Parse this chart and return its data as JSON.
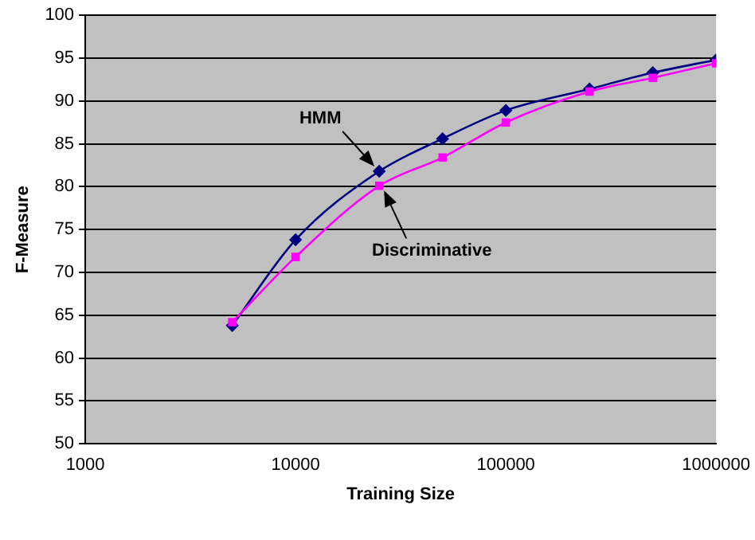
{
  "chart_data": {
    "type": "line",
    "xlabel": "Training Size",
    "ylabel": "F-Measure",
    "x": [
      5000,
      10000,
      25000,
      50000,
      100000,
      250000,
      500000,
      1000000
    ],
    "series": [
      {
        "name": "HMM",
        "color": "#000080",
        "marker": "diamond",
        "values": [
          63.8,
          73.8,
          81.8,
          85.6,
          88.9,
          91.4,
          93.3,
          94.8
        ]
      },
      {
        "name": "Discriminative",
        "color": "#ff00ff",
        "marker": "square",
        "values": [
          64.2,
          71.8,
          80.1,
          83.4,
          87.5,
          91.1,
          92.7,
          94.4
        ]
      }
    ],
    "log": "x",
    "xlim": [
      1000,
      1000000
    ],
    "xticks": [
      1000,
      10000,
      100000,
      1000000
    ],
    "ylim": [
      50,
      100
    ],
    "yticks": [
      50,
      55,
      60,
      65,
      70,
      75,
      80,
      85,
      90,
      95,
      100
    ],
    "grid": "y",
    "legend": false
  }
}
